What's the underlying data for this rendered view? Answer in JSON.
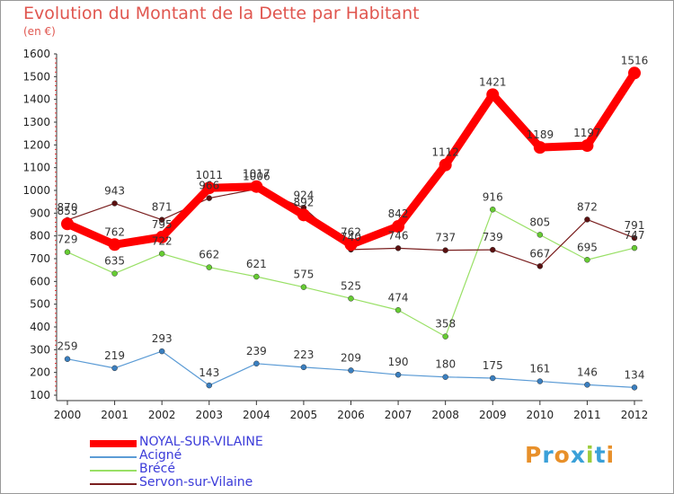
{
  "title": "Evolution du Montant de la Dette par Habitant",
  "subtitle": "(en €)",
  "logo": "Proxiti",
  "chart_data": {
    "type": "line",
    "categories": [
      "2000",
      "2001",
      "2002",
      "2003",
      "2004",
      "2005",
      "2006",
      "2007",
      "2008",
      "2009",
      "2010",
      "2011",
      "2012"
    ],
    "ylim": [
      100,
      1600
    ],
    "yticks": [
      100,
      200,
      300,
      400,
      500,
      600,
      700,
      800,
      900,
      1000,
      1100,
      1200,
      1300,
      1400,
      1500,
      1600
    ],
    "grid": false,
    "legend": "bottom-left",
    "series": [
      {
        "name": "NOYAL-SUR-VILAINE",
        "color": "#ff0000",
        "values": [
          853,
          762,
          795,
          1011,
          1017,
          892,
          762,
          842,
          1112,
          1421,
          1189,
          1197,
          1516
        ],
        "labels": [
          "853",
          "762",
          "795",
          "1011",
          "1017",
          "892",
          "762",
          "842",
          "1112",
          "1421",
          "1189",
          "1197",
          "1516"
        ]
      },
      {
        "name": "Acigné",
        "color": "#5b9bd5",
        "values": [
          259,
          219,
          293,
          143,
          239,
          223,
          209,
          190,
          180,
          175,
          161,
          146,
          134
        ],
        "labels": [
          "259",
          "219",
          "293",
          "143",
          "239",
          "223",
          "209",
          "190",
          "180",
          "175",
          "161",
          "146",
          "134"
        ]
      },
      {
        "name": "Brécé",
        "color": "#99e066",
        "values": [
          729,
          635,
          722,
          662,
          621,
          575,
          525,
          474,
          358,
          916,
          805,
          695,
          747
        ],
        "labels": [
          "729",
          "635",
          "722",
          "662",
          "621",
          "575",
          "525",
          "474",
          "358",
          "916",
          "805",
          "695",
          "747"
        ]
      },
      {
        "name": "Servon-sur-Vilaine",
        "color": "#7a1f1f",
        "values": [
          870,
          943,
          871,
          966,
          1006,
          924,
          740,
          746,
          737,
          739,
          667,
          872,
          791
        ],
        "labels": [
          "870",
          "943",
          "871",
          "966",
          "1006",
          "924",
          "740",
          "746",
          "737",
          "739",
          "667",
          "872",
          "791"
        ]
      }
    ]
  }
}
